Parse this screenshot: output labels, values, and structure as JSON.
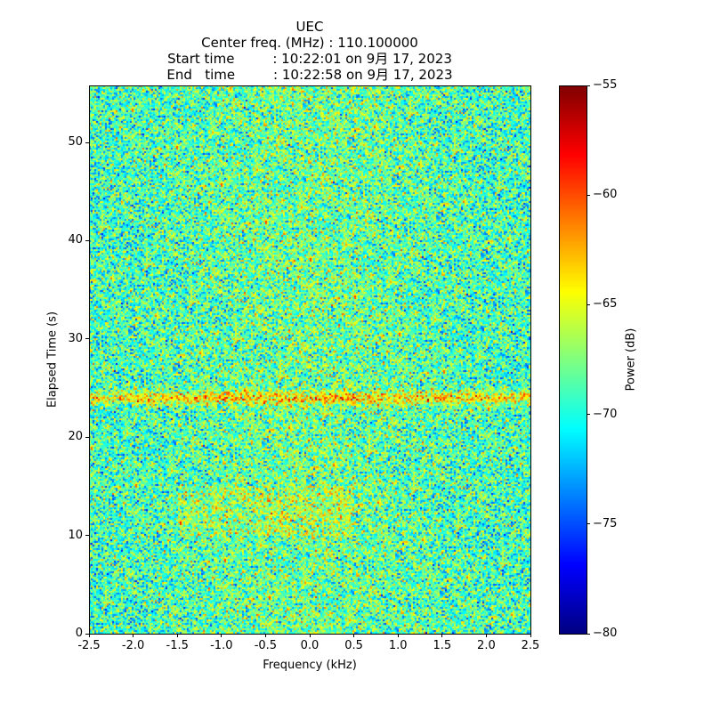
{
  "chart_data": {
    "type": "heatmap",
    "title_lines": [
      "UEC",
      "Center freq. (MHz) : 110.100000",
      "Start time         : 10:22:01 on 9月 17, 2023",
      "End   time         : 10:22:58 on 9月 17, 2023"
    ],
    "xlabel": "Frequency (kHz)",
    "ylabel": "Elapsed Time (s)",
    "xlim": [
      -2.5,
      2.5
    ],
    "ylim": [
      0,
      55.8
    ],
    "xticks": [
      "-2.5",
      "-2.0",
      "-1.5",
      "-1.0",
      "-0.5",
      "0.0",
      "0.5",
      "1.0",
      "1.5",
      "2.0",
      "2.5"
    ],
    "yticks": [
      "0",
      "10",
      "20",
      "30",
      "40",
      "50"
    ],
    "colorbar": {
      "label": "Power (dB)",
      "range": [
        -80,
        -55
      ],
      "ticks": [
        "−80",
        "−75",
        "−70",
        "−65",
        "−60",
        "−55"
      ],
      "colormap": "jet"
    },
    "noise_floor_db": -69,
    "noise_spread_db": 5,
    "features": [
      {
        "type": "horizontal-band",
        "time_s": 24,
        "power_db": -63
      },
      {
        "type": "elevated-region",
        "time_s_range": [
          10,
          15
        ],
        "freq_khz_range": [
          -1.5,
          0.5
        ],
        "power_db": -66
      }
    ]
  }
}
